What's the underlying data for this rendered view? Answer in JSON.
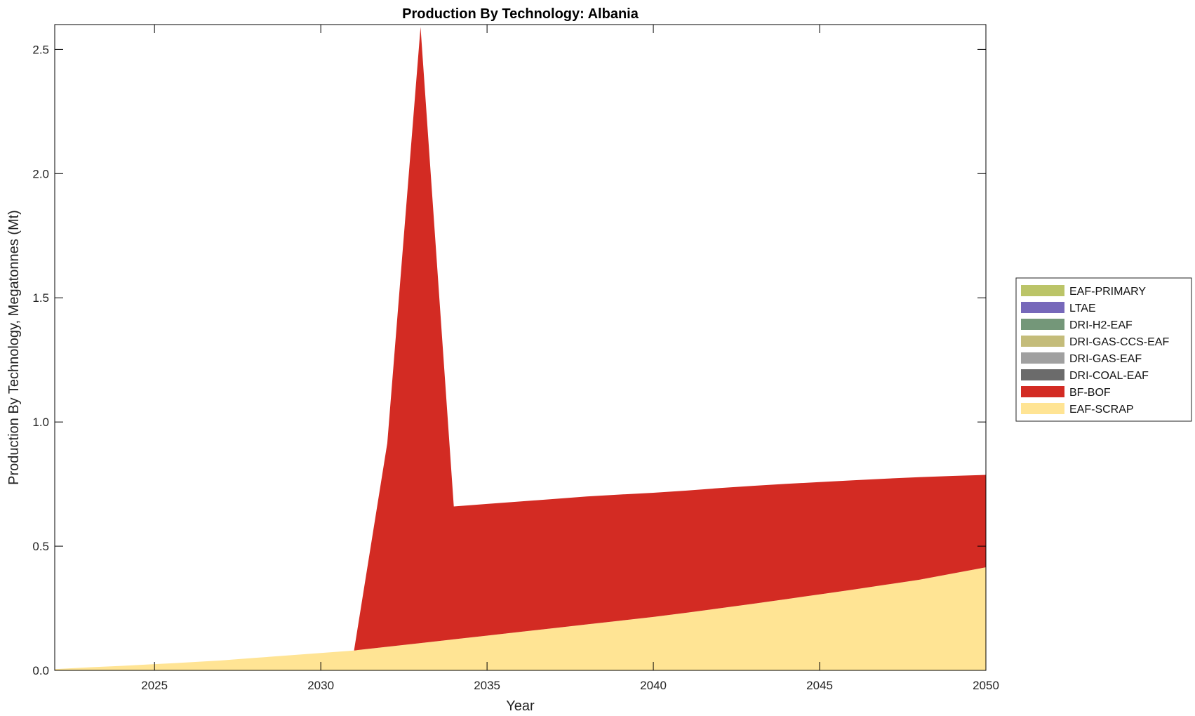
{
  "chart_data": {
    "type": "area",
    "stacked": true,
    "title": "Production By Technology: Albania",
    "xlabel": "Year",
    "ylabel": "Production By Technology, Megatonnes (Mt)",
    "xlim": [
      2022,
      2050
    ],
    "ylim": [
      0,
      2.6
    ],
    "xticks": [
      "2025",
      "2030",
      "2035",
      "2040",
      "2045",
      "2050"
    ],
    "yticks": [
      "0.0",
      "0.5",
      "1.0",
      "1.5",
      "2.0",
      "2.5"
    ],
    "grid": false,
    "legend_position": "right",
    "x": [
      2022,
      2023,
      2024,
      2025,
      2026,
      2027,
      2028,
      2029,
      2030,
      2031,
      2032,
      2033,
      2034,
      2035,
      2036,
      2037,
      2038,
      2039,
      2040,
      2041,
      2042,
      2043,
      2044,
      2045,
      2046,
      2047,
      2048,
      2049,
      2050
    ],
    "series": [
      {
        "name": "EAF-SCRAP",
        "color": "#FFE494",
        "values": [
          0.005,
          0.012,
          0.018,
          0.025,
          0.032,
          0.04,
          0.05,
          0.06,
          0.07,
          0.08,
          0.095,
          0.11,
          0.125,
          0.14,
          0.155,
          0.17,
          0.185,
          0.2,
          0.215,
          0.232,
          0.25,
          0.268,
          0.287,
          0.306,
          0.325,
          0.345,
          0.365,
          0.39,
          0.415
        ]
      },
      {
        "name": "BF-BOF",
        "color": "#D32B23",
        "values": [
          0,
          0,
          0,
          0,
          0,
          0,
          0,
          0,
          0,
          0,
          0.82,
          2.48,
          0.535,
          0.53,
          0.525,
          0.52,
          0.515,
          0.508,
          0.5,
          0.492,
          0.484,
          0.475,
          0.464,
          0.452,
          0.44,
          0.427,
          0.413,
          0.393,
          0.372
        ]
      },
      {
        "name": "DRI-COAL-EAF",
        "color": "#6B6B6B",
        "values": [
          0,
          0,
          0,
          0,
          0,
          0,
          0,
          0,
          0,
          0,
          0,
          0,
          0,
          0,
          0,
          0,
          0,
          0,
          0,
          0,
          0,
          0,
          0,
          0,
          0,
          0,
          0,
          0,
          0
        ]
      },
      {
        "name": "DRI-GAS-EAF",
        "color": "#A0A0A0",
        "values": [
          0,
          0,
          0,
          0,
          0,
          0,
          0,
          0,
          0,
          0,
          0,
          0,
          0,
          0,
          0,
          0,
          0,
          0,
          0,
          0,
          0,
          0,
          0,
          0,
          0,
          0,
          0,
          0,
          0
        ]
      },
      {
        "name": "DRI-GAS-CCS-EAF",
        "color": "#C4BC7A",
        "values": [
          0,
          0,
          0,
          0,
          0,
          0,
          0,
          0,
          0,
          0,
          0,
          0,
          0,
          0,
          0,
          0,
          0,
          0,
          0,
          0,
          0,
          0,
          0,
          0,
          0,
          0,
          0,
          0,
          0
        ]
      },
      {
        "name": "DRI-H2-EAF",
        "color": "#749779",
        "values": [
          0,
          0,
          0,
          0,
          0,
          0,
          0,
          0,
          0,
          0,
          0,
          0,
          0,
          0,
          0,
          0,
          0,
          0,
          0,
          0,
          0,
          0,
          0,
          0,
          0,
          0,
          0,
          0,
          0
        ]
      },
      {
        "name": "LTAE",
        "color": "#7668BA",
        "values": [
          0,
          0,
          0,
          0,
          0,
          0,
          0,
          0,
          0,
          0,
          0,
          0,
          0,
          0,
          0,
          0,
          0,
          0,
          0,
          0,
          0,
          0,
          0,
          0,
          0,
          0,
          0,
          0,
          0
        ]
      },
      {
        "name": "EAF-PRIMARY",
        "color": "#BBC468",
        "values": [
          0,
          0,
          0,
          0,
          0,
          0,
          0,
          0,
          0,
          0,
          0,
          0,
          0,
          0,
          0,
          0,
          0,
          0,
          0,
          0,
          0,
          0,
          0,
          0,
          0,
          0,
          0,
          0,
          0
        ]
      }
    ],
    "legend_order": [
      "EAF-PRIMARY",
      "LTAE",
      "DRI-H2-EAF",
      "DRI-GAS-CCS-EAF",
      "DRI-GAS-EAF",
      "DRI-COAL-EAF",
      "BF-BOF",
      "EAF-SCRAP"
    ]
  }
}
